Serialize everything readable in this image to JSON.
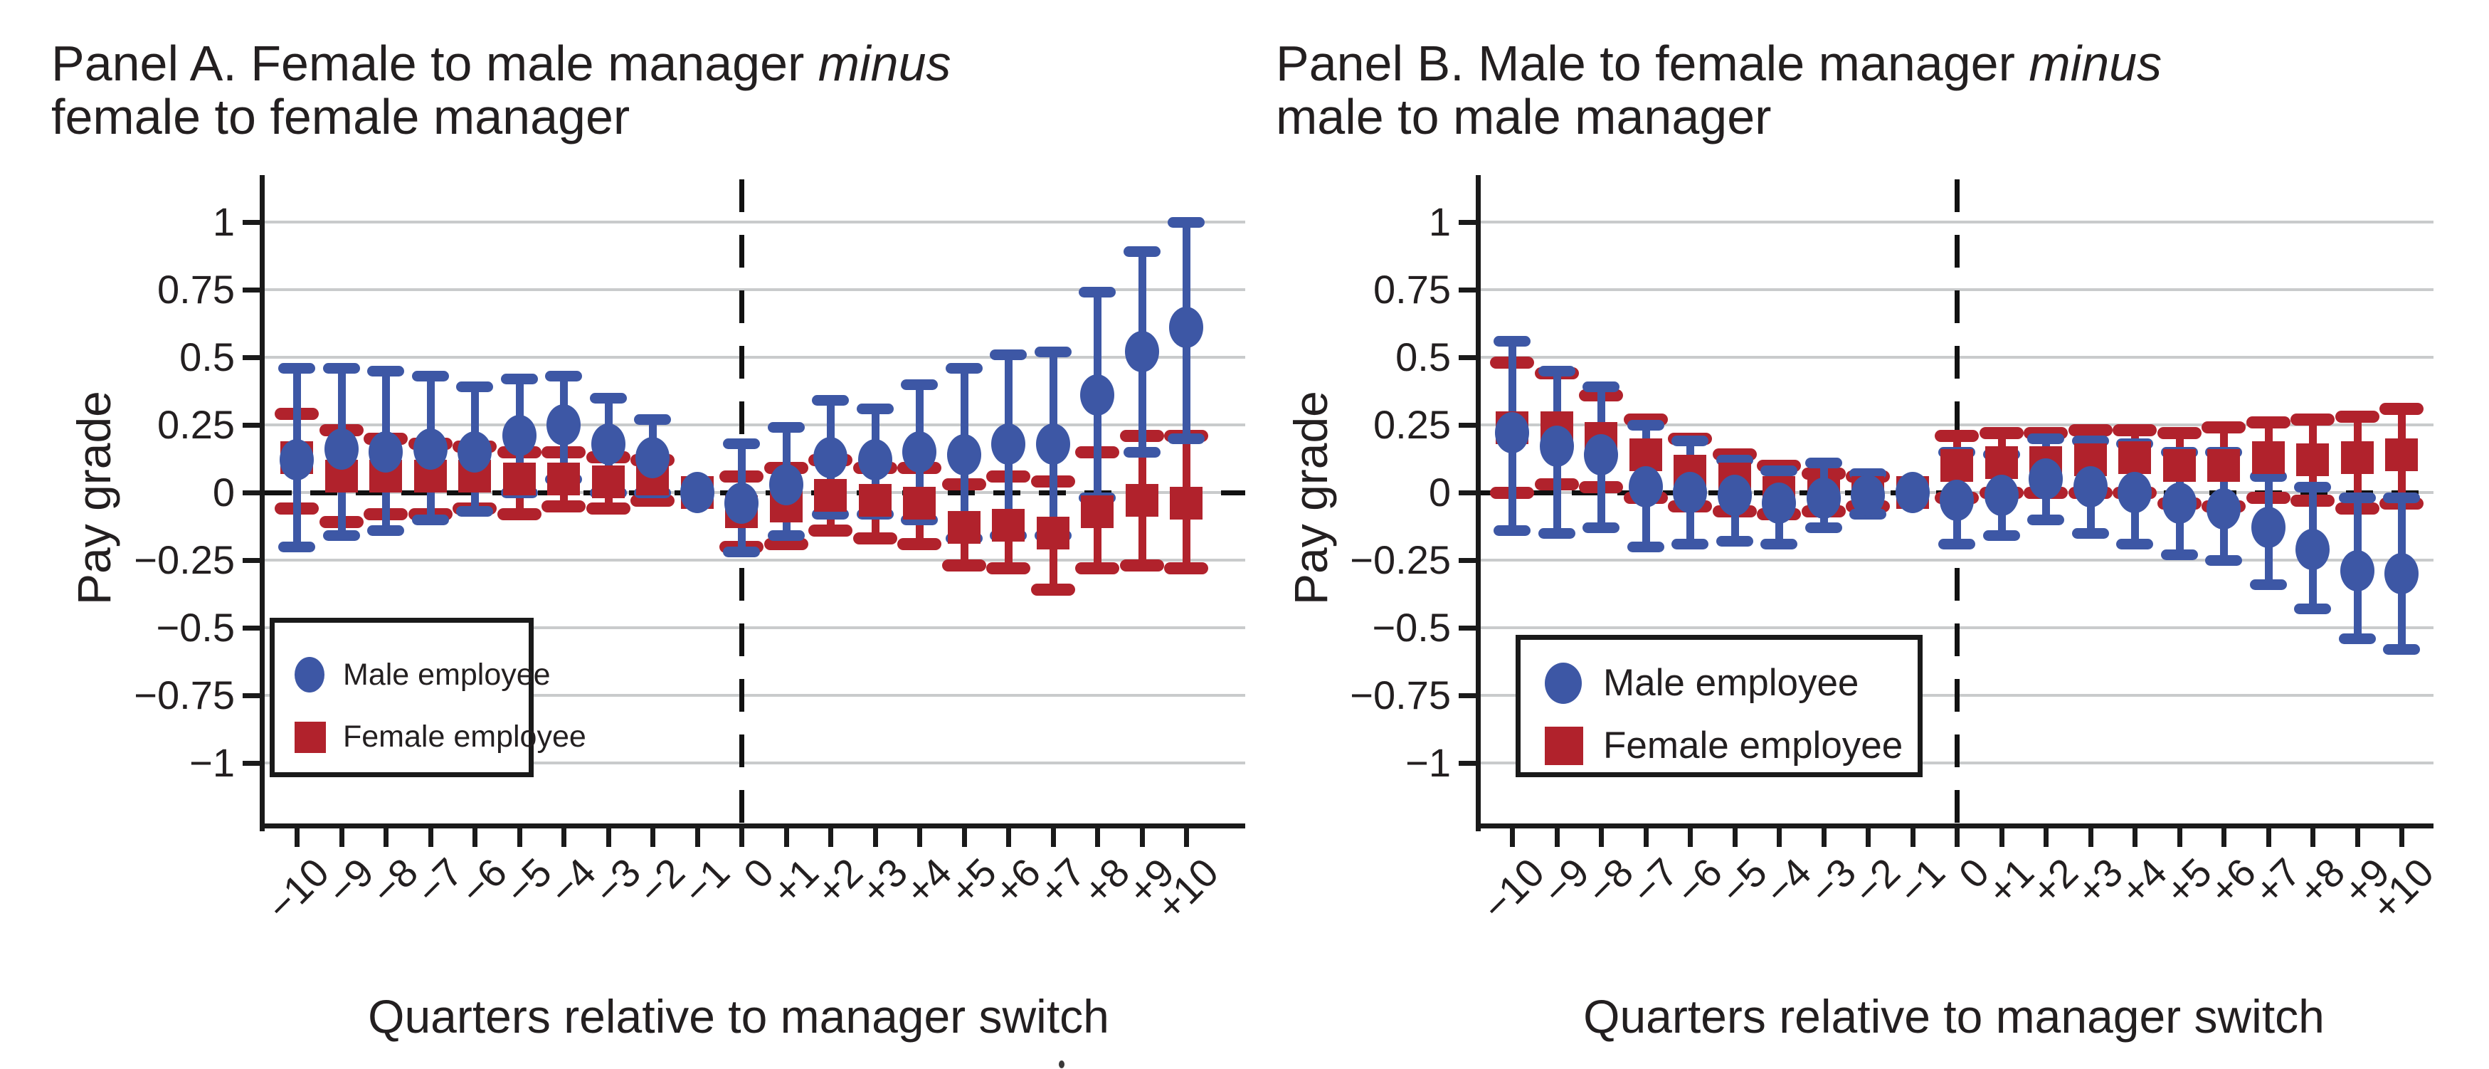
{
  "figure": {
    "panels": [
      {
        "id": "A",
        "title_pre": "Panel A. Female to male manager ",
        "title_italic": "minus",
        "title_line2": "female to female manager",
        "ylabel": "Pay grade",
        "xlabel": "Quarters relative to manager switch"
      },
      {
        "id": "B",
        "title_pre": "Panel B. Male to female manager ",
        "title_italic": "minus",
        "title_line2": "male to male manager",
        "ylabel": "Pay grade",
        "xlabel": "Quarters relative to manager switch"
      }
    ],
    "legend": {
      "male_label": "Male employee",
      "female_label": "Female employee"
    },
    "colors": {
      "male_blue": "#3D57A5",
      "female_red": "#B1222C",
      "grid_gray": "#c9cbcc",
      "axis_black": "#1a1a1a"
    }
  },
  "chart_data": [
    {
      "type": "scatter",
      "title": "Panel A. Female to male manager minus female to female manager",
      "xlabel": "Quarters relative to manager switch",
      "ylabel": "Pay grade",
      "ylim": [
        -1,
        1
      ],
      "grid": true,
      "legend_position": "lower left",
      "vline_x": 0,
      "hline_y": 0,
      "reference_quarter": -1,
      "x": [
        -10,
        -9,
        -8,
        -7,
        -6,
        -5,
        -4,
        -3,
        -2,
        -1,
        0,
        1,
        2,
        3,
        4,
        5,
        6,
        7,
        8,
        9,
        10
      ],
      "x_tick_labels": [
        "−10",
        "−9",
        "−8",
        "−7",
        "−6",
        "−5",
        "−4",
        "−3",
        "−2",
        "−1",
        "0",
        "+1",
        "+2",
        "+3",
        "+4",
        "+5",
        "+6",
        "+7",
        "+8",
        "+9",
        "+10"
      ],
      "y_ticks": [
        1,
        0.75,
        0.5,
        0.25,
        0,
        -0.25,
        -0.5,
        -0.75,
        -1
      ],
      "y_tick_labels": [
        "1",
        "0.75",
        "0.5",
        "0.25",
        "0",
        "−0.25",
        "−0.5",
        "−0.75",
        "−1"
      ],
      "series": [
        {
          "name": "Female employee",
          "marker": "square",
          "color": "#B1222C",
          "estimates": [
            0.13,
            0.06,
            0.06,
            0.06,
            0.06,
            0.05,
            0.05,
            0.04,
            0.05,
            0,
            -0.07,
            -0.05,
            -0.01,
            -0.03,
            -0.04,
            -0.13,
            -0.12,
            -0.15,
            -0.07,
            -0.03,
            -0.04
          ],
          "ci_low": [
            -0.06,
            -0.11,
            -0.08,
            -0.08,
            -0.06,
            -0.08,
            -0.05,
            -0.06,
            -0.03,
            null,
            -0.2,
            -0.19,
            -0.14,
            -0.17,
            -0.19,
            -0.27,
            -0.28,
            -0.36,
            -0.28,
            -0.27,
            -0.28
          ],
          "ci_high": [
            0.29,
            0.23,
            0.2,
            0.18,
            0.17,
            0.15,
            0.15,
            0.13,
            0.12,
            null,
            0.06,
            0.09,
            0.12,
            0.09,
            0.09,
            0.03,
            0.06,
            0.04,
            0.15,
            0.21,
            0.21
          ]
        },
        {
          "name": "Male employee",
          "marker": "circle",
          "color": "#3D57A5",
          "estimates": [
            0.12,
            0.16,
            0.15,
            0.16,
            0.15,
            0.21,
            0.25,
            0.18,
            0.13,
            0,
            -0.04,
            0.03,
            0.13,
            0.12,
            0.15,
            0.14,
            0.18,
            0.18,
            0.36,
            0.52,
            0.61
          ],
          "ci_low": [
            -0.2,
            -0.16,
            -0.14,
            -0.1,
            -0.07,
            0.0,
            0.05,
            0.0,
            0.0,
            null,
            -0.22,
            -0.16,
            -0.08,
            -0.08,
            -0.1,
            -0.17,
            -0.16,
            -0.16,
            -0.02,
            0.15,
            0.2
          ],
          "ci_high": [
            0.46,
            0.46,
            0.45,
            0.43,
            0.39,
            0.42,
            0.43,
            0.35,
            0.27,
            null,
            0.18,
            0.24,
            0.34,
            0.31,
            0.4,
            0.46,
            0.51,
            0.52,
            0.74,
            0.89,
            1.0
          ]
        }
      ]
    },
    {
      "type": "scatter",
      "title": "Panel B. Male to female manager minus male to male manager",
      "xlabel": "Quarters relative to manager switch",
      "ylabel": "Pay grade",
      "ylim": [
        -1,
        1
      ],
      "grid": true,
      "legend_position": "lower left",
      "vline_x": 0,
      "hline_y": 0,
      "reference_quarter": -1,
      "x": [
        -10,
        -9,
        -8,
        -7,
        -6,
        -5,
        -4,
        -3,
        -2,
        -1,
        0,
        1,
        2,
        3,
        4,
        5,
        6,
        7,
        8,
        9,
        10
      ],
      "x_tick_labels": [
        "−10",
        "−9",
        "−8",
        "−7",
        "−6",
        "−5",
        "−4",
        "−3",
        "−2",
        "−1",
        "0",
        "+1",
        "+2",
        "+3",
        "+4",
        "+5",
        "+6",
        "+7",
        "+8",
        "+9",
        "+10"
      ],
      "y_ticks": [
        1,
        0.75,
        0.5,
        0.25,
        0,
        -0.25,
        -0.5,
        -0.75,
        -1
      ],
      "y_tick_labels": [
        "1",
        "0.75",
        "0.5",
        "0.25",
        "0",
        "−0.25",
        "−0.5",
        "−0.75",
        "−1"
      ],
      "series": [
        {
          "name": "Female employee",
          "marker": "square",
          "color": "#B1222C",
          "estimates": [
            0.24,
            0.24,
            0.2,
            0.14,
            0.08,
            0.05,
            0.0,
            -0.01,
            0.0,
            0,
            0.1,
            0.11,
            0.11,
            0.12,
            0.13,
            0.1,
            0.1,
            0.13,
            0.12,
            0.13,
            0.14
          ],
          "ci_low": [
            0.0,
            0.03,
            0.02,
            -0.02,
            -0.05,
            -0.07,
            -0.08,
            -0.07,
            -0.05,
            null,
            -0.02,
            0.0,
            0.0,
            0.0,
            0.0,
            -0.04,
            -0.05,
            -0.02,
            -0.03,
            -0.06,
            -0.04
          ],
          "ci_high": [
            0.48,
            0.44,
            0.36,
            0.27,
            0.2,
            0.14,
            0.1,
            0.07,
            0.06,
            null,
            0.21,
            0.22,
            0.22,
            0.23,
            0.23,
            0.22,
            0.24,
            0.26,
            0.27,
            0.28,
            0.31
          ]
        },
        {
          "name": "Male employee",
          "marker": "circle",
          "color": "#3D57A5",
          "estimates": [
            0.22,
            0.17,
            0.14,
            0.02,
            0.0,
            -0.01,
            -0.04,
            -0.02,
            -0.01,
            0,
            -0.03,
            -0.01,
            0.05,
            0.02,
            0.0,
            -0.04,
            -0.06,
            -0.13,
            -0.21,
            -0.29,
            -0.3
          ],
          "ci_low": [
            -0.14,
            -0.15,
            -0.13,
            -0.2,
            -0.19,
            -0.18,
            -0.19,
            -0.13,
            -0.08,
            null,
            -0.19,
            -0.16,
            -0.1,
            -0.15,
            -0.19,
            -0.23,
            -0.25,
            -0.34,
            -0.43,
            -0.54,
            -0.58
          ],
          "ci_high": [
            0.56,
            0.45,
            0.39,
            0.25,
            0.19,
            0.12,
            0.08,
            0.11,
            0.07,
            null,
            0.15,
            0.14,
            0.2,
            0.19,
            0.18,
            0.15,
            0.15,
            0.06,
            0.02,
            -0.02,
            -0.02
          ]
        }
      ]
    }
  ]
}
